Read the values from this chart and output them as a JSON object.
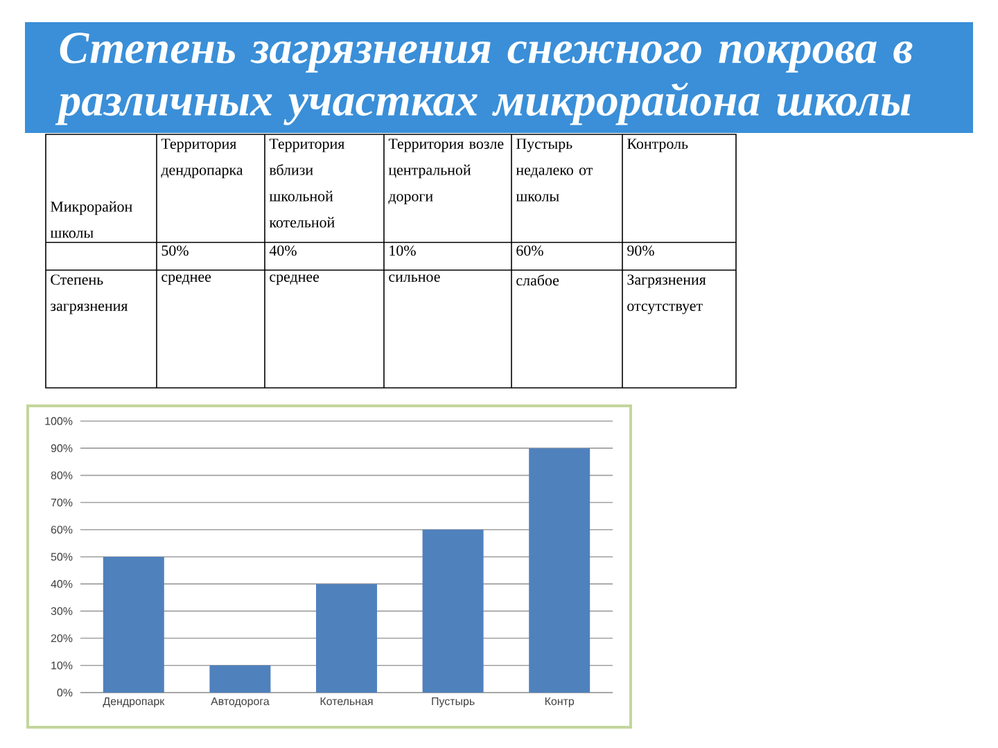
{
  "chart_data": [
    {
      "type": "other",
      "title": "Степень загрязнения снежного покрова в различных участках микрорайона школы",
      "categories": [
        "Территория дендропарка",
        "Территория вблизи школьной котельной",
        "Территория возле центральной дороги",
        "Пустырь недалеко от школы",
        "Контроль"
      ],
      "annotations": [
        "Микрорайон школы",
        "50%",
        "40%",
        "10%",
        "60%",
        "90%",
        "Степень загрязнения",
        "среднее",
        "среднее",
        "сильное",
        "слабое",
        "Загрязнения отсутствует"
      ]
    },
    {
      "type": "bar",
      "categories": [
        "Дендропарк",
        "Автодорога",
        "Котельная",
        "Пустырь",
        "Контр"
      ],
      "values": [
        50,
        10,
        40,
        60,
        90
      ],
      "color": "#4f81bd",
      "ylim": [
        0,
        100
      ],
      "yticks": [
        {
          "value": 0,
          "label": "0%"
        },
        {
          "value": 10,
          "label": "10%"
        },
        {
          "value": 20,
          "label": "20%"
        },
        {
          "value": 30,
          "label": "30%"
        },
        {
          "value": 40,
          "label": "40%"
        },
        {
          "value": 50,
          "label": "50%"
        },
        {
          "value": 60,
          "label": "60%"
        },
        {
          "value": 70,
          "label": "70%"
        },
        {
          "value": 80,
          "label": "80%"
        },
        {
          "value": 90,
          "label": "90%"
        },
        {
          "value": 100,
          "label": "100%"
        }
      ],
      "grid": "y"
    }
  ]
}
